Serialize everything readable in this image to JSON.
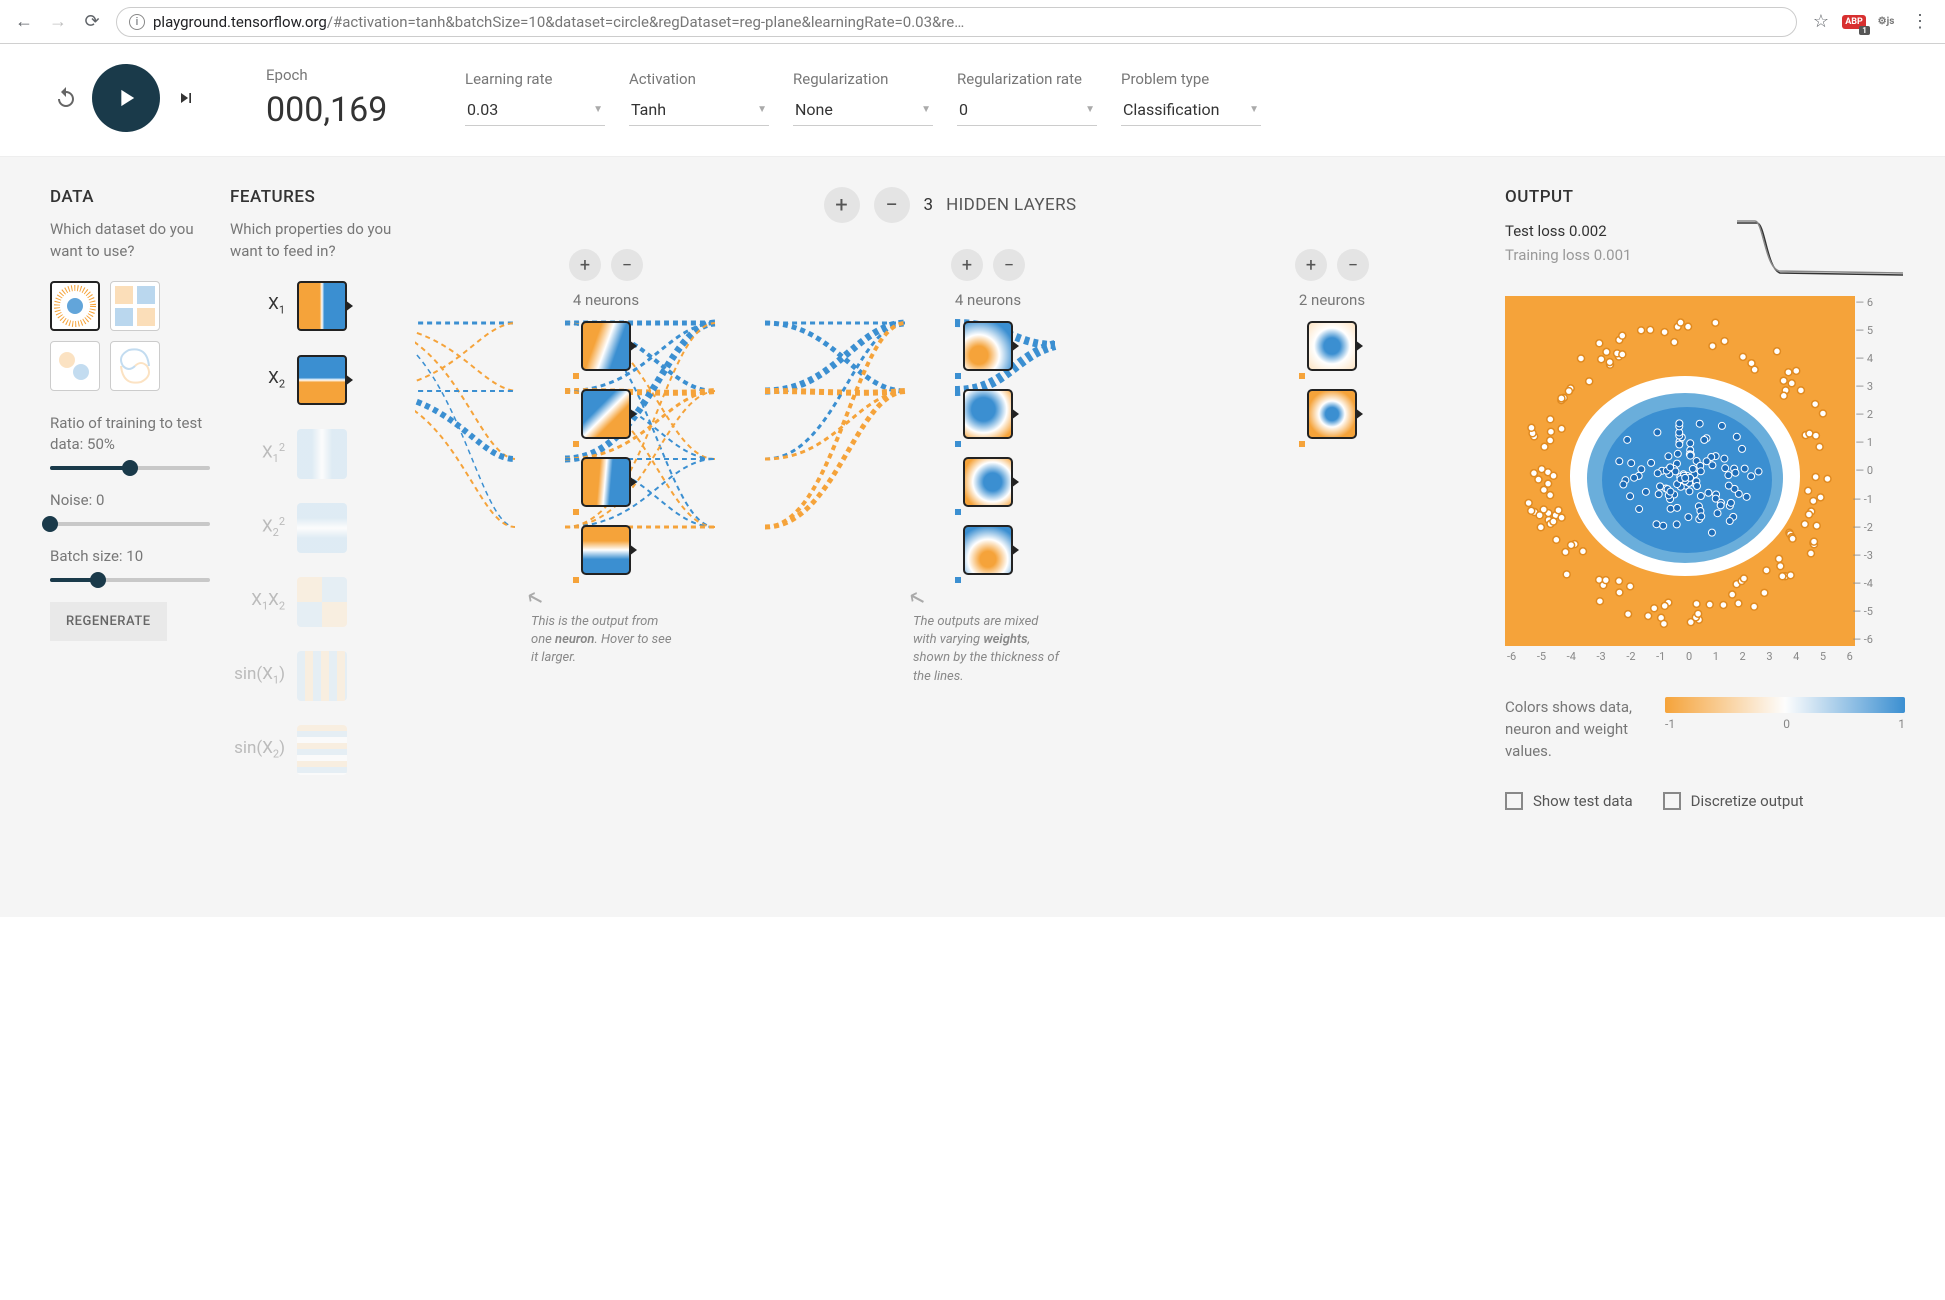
{
  "browser": {
    "url_domain": "playground.tensorflow.org",
    "url_path": "/#activation=tanh&batchSize=10&dataset=circle&regDataset=reg-plane&learningRate=0.03&re…"
  },
  "controls": {
    "epoch_label": "Epoch",
    "epoch_value": "000,169",
    "learning_rate_label": "Learning rate",
    "learning_rate_value": "0.03",
    "activation_label": "Activation",
    "activation_value": "Tanh",
    "regularization_label": "Regularization",
    "regularization_value": "None",
    "reg_rate_label": "Regularization rate",
    "reg_rate_value": "0",
    "problem_label": "Problem type",
    "problem_value": "Classification"
  },
  "data": {
    "title": "DATA",
    "subtitle": "Which dataset do you want to use?",
    "ratio_label": "Ratio of training to test data:  50%",
    "ratio_pct": 50,
    "noise_label": "Noise:  0",
    "noise_pct": 0,
    "batch_label": "Batch size:  10",
    "batch_pct": 30,
    "regenerate": "REGENERATE"
  },
  "features": {
    "title": "FEATURES",
    "subtitle": "Which properties do you want to feed in?",
    "items": [
      {
        "label": "X₁",
        "active": true
      },
      {
        "label": "X₂",
        "active": true
      },
      {
        "label": "X₁²",
        "active": false
      },
      {
        "label": "X₂²",
        "active": false
      },
      {
        "label": "X₁X₂",
        "active": false
      },
      {
        "label": "sin(X₁)",
        "active": false
      },
      {
        "label": "sin(X₂)",
        "active": false
      }
    ]
  },
  "network": {
    "hidden_count": "3",
    "hidden_label": "HIDDEN LAYERS",
    "layers": [
      {
        "label": "4 neurons",
        "count": 4
      },
      {
        "label": "4 neurons",
        "count": 4
      },
      {
        "label": "2 neurons",
        "count": 2
      }
    ],
    "hint_neuron": "This is the output from one <b>neuron</b>. Hover to see it larger.",
    "hint_weights": "The outputs are mixed with varying <b>weights</b>, shown by the thickness of the lines.",
    "colors": {
      "orange": "#f5a33a",
      "blue": "#3b8fd1"
    }
  },
  "output": {
    "title": "OUTPUT",
    "test_loss_label": "Test loss",
    "test_loss_value": "0.002",
    "train_loss_label": "Training loss",
    "train_loss_value": "0.001",
    "axis_ticks_x": [
      "-6",
      "-5",
      "-4",
      "-3",
      "-2",
      "-1",
      "0",
      "1",
      "2",
      "3",
      "4",
      "5",
      "6"
    ],
    "axis_ticks_y": [
      "6",
      "5",
      "4",
      "3",
      "2",
      "1",
      "0",
      "-1",
      "-2",
      "-3",
      "-4",
      "-5",
      "-6"
    ],
    "legend_text": "Colors shows data, neuron and weight values.",
    "legend_min": "-1",
    "legend_mid": "0",
    "legend_max": "1",
    "show_test": "Show test data",
    "discretize": "Discretize output",
    "plot_bg": "#f5a33a",
    "plot_center": "#3b8fd1"
  }
}
